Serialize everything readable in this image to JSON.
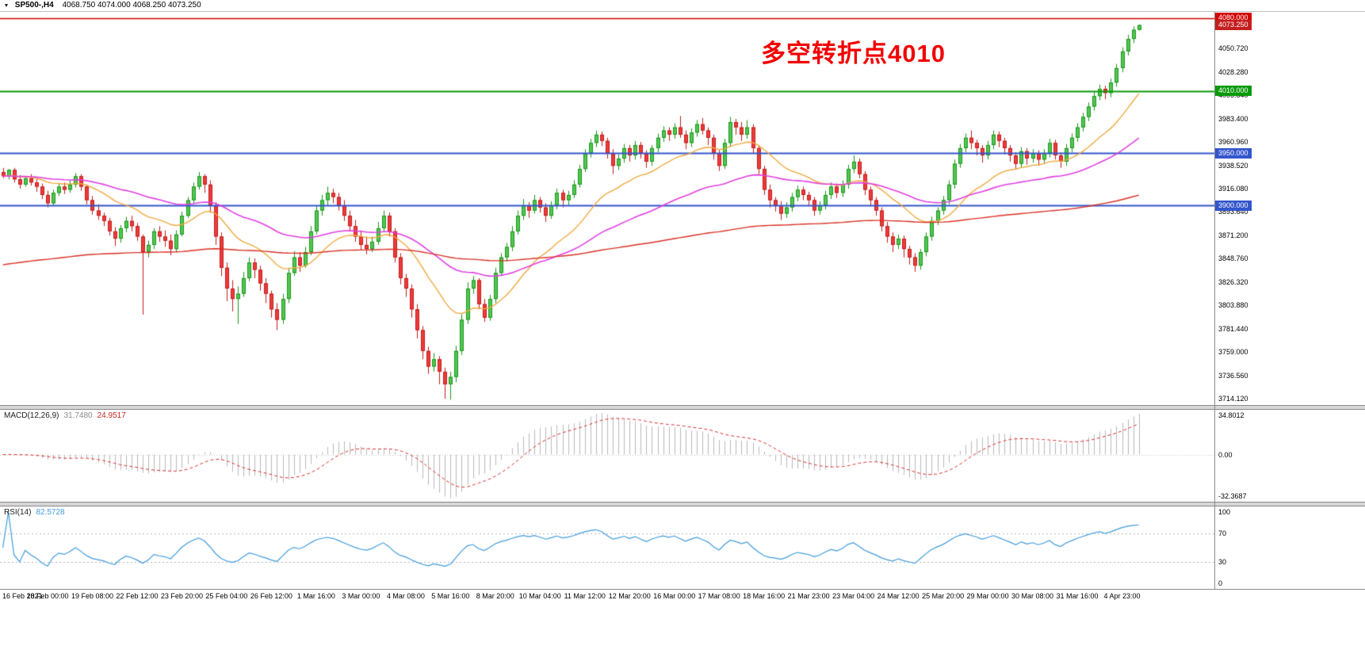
{
  "header": {
    "menu_icon": "▼",
    "symbol": "SP500-,H4",
    "ohlc": "4068.750 4074.000 4068.250 4073.250"
  },
  "annotation": {
    "text": "多空转折点4010",
    "color": "#f20000"
  },
  "price_axis": {
    "ticks": [
      4050.72,
      4028.28,
      4005.84,
      3983.4,
      3960.96,
      3938.52,
      3916.08,
      3893.64,
      3871.2,
      3848.76,
      3826.32,
      3803.88,
      3781.44,
      3759.0,
      3736.56,
      3714.12
    ],
    "badges": [
      {
        "label": "4080.000",
        "price": 4080.0,
        "bg": "#d40000"
      },
      {
        "label": "4073.250",
        "price": 4073.25,
        "bg": "#c41e1e"
      },
      {
        "label": "4010.000",
        "price": 4010.0,
        "bg": "#089b08"
      },
      {
        "label": "3950.000",
        "price": 3950.0,
        "bg": "#3355cc"
      },
      {
        "label": "3900.000",
        "price": 3900.0,
        "bg": "#3355cc"
      }
    ]
  },
  "macd_panel": {
    "label": "MACD(12,26,9)",
    "value_main": "31.7480",
    "value_signal": "24.9517",
    "axis": {
      "max": "34.8012",
      "zero": "0.00",
      "min": "-32.3687"
    }
  },
  "rsi_panel": {
    "label": "RSI(14)",
    "value": "82.5728",
    "axis": [
      100,
      70,
      30,
      0
    ],
    "levels": [
      70,
      30
    ]
  },
  "chart_data": {
    "type": "candlestick",
    "title": "SP500- H4",
    "price_range": [
      3708,
      4086
    ],
    "right_margin_bars": 13,
    "x_axis_labels": [
      "16 Feb 2021",
      "18 Feb 00:00",
      "19 Feb 08:00",
      "22 Feb 12:00",
      "23 Feb 20:00",
      "25 Feb 04:00",
      "26 Feb 12:00",
      "1 Mar 16:00",
      "3 Mar 00:00",
      "4 Mar 08:00",
      "5 Mar 16:00",
      "8 Mar 20:00",
      "10 Mar 04:00",
      "11 Mar 12:00",
      "12 Mar 20:00",
      "16 Mar 00:00",
      "17 Mar 08:00",
      "18 Mar 16:00",
      "21 Mar 23:00",
      "23 Mar 04:00",
      "24 Mar 12:00",
      "25 Mar 20:00",
      "29 Mar 00:00",
      "30 Mar 08:00",
      "31 Mar 16:00",
      "4 Apr 23:00"
    ],
    "label_bar_step": 8,
    "horizontal_lines": [
      {
        "price": 4080.0,
        "color": "#d40000",
        "width": 1.5
      },
      {
        "price": 4010.0,
        "color": "#089b08",
        "width": 2
      },
      {
        "price": 3950.0,
        "color": "#3355cc",
        "width": 2
      },
      {
        "price": 3900.0,
        "color": "#3355cc",
        "width": 2
      }
    ],
    "moving_averages": [
      {
        "name": "ma-fast",
        "method": "ema",
        "period": 20,
        "color": "#efa93e",
        "width": 1.4
      },
      {
        "name": "ma-mid",
        "method": "ema",
        "period": 55,
        "seed": 3928,
        "color": "#e040e0",
        "width": 1.6
      },
      {
        "name": "ma-slow",
        "method": "ema",
        "period": 220,
        "seed": 3842,
        "color": "#d93025",
        "width": 1.4
      }
    ],
    "indicators": {
      "macd": {
        "fast": 12,
        "slow": 26,
        "signal": 9
      },
      "rsi": {
        "period": 14
      }
    },
    "candle_colors": {
      "up_fill": "#53c653",
      "up_border": "#189618",
      "down_fill": "#ef3b3b",
      "down_border": "#c01d1d"
    },
    "candles": [
      [
        3932,
        3936,
        3926,
        3928
      ],
      [
        3928,
        3935,
        3925,
        3934
      ],
      [
        3934,
        3936,
        3922,
        3925
      ],
      [
        3925,
        3929,
        3916,
        3920
      ],
      [
        3920,
        3928,
        3918,
        3926
      ],
      [
        3926,
        3930,
        3919,
        3922
      ],
      [
        3922,
        3925,
        3913,
        3918
      ],
      [
        3918,
        3921,
        3906,
        3910
      ],
      [
        3910,
        3914,
        3898,
        3902
      ],
      [
        3902,
        3915,
        3900,
        3912
      ],
      [
        3912,
        3921,
        3909,
        3918
      ],
      [
        3918,
        3922,
        3911,
        3915
      ],
      [
        3915,
        3924,
        3912,
        3920
      ],
      [
        3920,
        3931,
        3917,
        3928
      ],
      [
        3928,
        3930,
        3914,
        3918
      ],
      [
        3918,
        3920,
        3901,
        3905
      ],
      [
        3905,
        3909,
        3891,
        3895
      ],
      [
        3895,
        3901,
        3886,
        3890
      ],
      [
        3890,
        3893,
        3880,
        3885
      ],
      [
        3885,
        3888,
        3871,
        3875
      ],
      [
        3875,
        3879,
        3861,
        3868
      ],
      [
        3868,
        3881,
        3864,
        3878
      ],
      [
        3878,
        3889,
        3874,
        3885
      ],
      [
        3885,
        3890,
        3875,
        3880
      ],
      [
        3880,
        3883,
        3866,
        3870
      ],
      [
        3870,
        3872,
        3795,
        3855
      ],
      [
        3855,
        3866,
        3850,
        3862
      ],
      [
        3862,
        3878,
        3858,
        3875
      ],
      [
        3875,
        3880,
        3865,
        3870
      ],
      [
        3870,
        3876,
        3860,
        3866
      ],
      [
        3866,
        3872,
        3852,
        3858
      ],
      [
        3858,
        3876,
        3855,
        3872
      ],
      [
        3872,
        3894,
        3870,
        3890
      ],
      [
        3890,
        3908,
        3888,
        3905
      ],
      [
        3905,
        3922,
        3902,
        3918
      ],
      [
        3918,
        3932,
        3915,
        3928
      ],
      [
        3928,
        3930,
        3912,
        3920
      ],
      [
        3920,
        3924,
        3893,
        3900
      ],
      [
        3900,
        3903,
        3862,
        3870
      ],
      [
        3870,
        3874,
        3832,
        3840
      ],
      [
        3840,
        3845,
        3808,
        3820
      ],
      [
        3820,
        3828,
        3798,
        3810
      ],
      [
        3810,
        3822,
        3786,
        3815
      ],
      [
        3815,
        3836,
        3812,
        3830
      ],
      [
        3830,
        3850,
        3827,
        3845
      ],
      [
        3845,
        3849,
        3830,
        3838
      ],
      [
        3838,
        3842,
        3818,
        3825
      ],
      [
        3825,
        3830,
        3806,
        3815
      ],
      [
        3815,
        3818,
        3792,
        3800
      ],
      [
        3800,
        3806,
        3780,
        3790
      ],
      [
        3790,
        3815,
        3786,
        3810
      ],
      [
        3810,
        3840,
        3806,
        3835
      ],
      [
        3835,
        3856,
        3832,
        3850
      ],
      [
        3850,
        3855,
        3836,
        3842
      ],
      [
        3842,
        3860,
        3840,
        3855
      ],
      [
        3855,
        3880,
        3852,
        3875
      ],
      [
        3875,
        3900,
        3872,
        3895
      ],
      [
        3895,
        3910,
        3890,
        3905
      ],
      [
        3905,
        3918,
        3900,
        3912
      ],
      [
        3912,
        3916,
        3902,
        3908
      ],
      [
        3908,
        3912,
        3895,
        3900
      ],
      [
        3900,
        3905,
        3885,
        3890
      ],
      [
        3890,
        3895,
        3875,
        3880
      ],
      [
        3880,
        3886,
        3865,
        3870
      ],
      [
        3870,
        3876,
        3857,
        3862
      ],
      [
        3862,
        3870,
        3853,
        3858
      ],
      [
        3858,
        3870,
        3855,
        3865
      ],
      [
        3865,
        3884,
        3862,
        3878
      ],
      [
        3878,
        3895,
        3874,
        3890
      ],
      [
        3890,
        3893,
        3870,
        3875
      ],
      [
        3875,
        3878,
        3845,
        3850
      ],
      [
        3850,
        3854,
        3824,
        3830
      ],
      [
        3830,
        3834,
        3812,
        3820
      ],
      [
        3820,
        3824,
        3792,
        3800
      ],
      [
        3800,
        3805,
        3772,
        3780
      ],
      [
        3780,
        3784,
        3752,
        3760
      ],
      [
        3760,
        3764,
        3738,
        3745
      ],
      [
        3745,
        3758,
        3740,
        3752
      ],
      [
        3752,
        3755,
        3728,
        3740
      ],
      [
        3740,
        3744,
        3714,
        3728
      ],
      [
        3728,
        3740,
        3713,
        3735
      ],
      [
        3735,
        3765,
        3730,
        3760
      ],
      [
        3760,
        3795,
        3756,
        3790
      ],
      [
        3790,
        3826,
        3786,
        3820
      ],
      [
        3820,
        3832,
        3815,
        3828
      ],
      [
        3828,
        3830,
        3800,
        3805
      ],
      [
        3805,
        3810,
        3788,
        3792
      ],
      [
        3792,
        3814,
        3789,
        3810
      ],
      [
        3810,
        3840,
        3806,
        3835
      ],
      [
        3835,
        3854,
        3832,
        3850
      ],
      [
        3850,
        3864,
        3846,
        3860
      ],
      [
        3860,
        3880,
        3856,
        3875
      ],
      [
        3875,
        3895,
        3872,
        3890
      ],
      [
        3890,
        3906,
        3886,
        3900
      ],
      [
        3900,
        3903,
        3888,
        3895
      ],
      [
        3895,
        3910,
        3892,
        3905
      ],
      [
        3905,
        3908,
        3893,
        3898
      ],
      [
        3898,
        3902,
        3884,
        3890
      ],
      [
        3890,
        3904,
        3887,
        3900
      ],
      [
        3900,
        3916,
        3896,
        3912
      ],
      [
        3912,
        3915,
        3898,
        3905
      ],
      [
        3905,
        3914,
        3900,
        3910
      ],
      [
        3910,
        3924,
        3907,
        3920
      ],
      [
        3920,
        3939,
        3917,
        3935
      ],
      [
        3935,
        3954,
        3932,
        3950
      ],
      [
        3950,
        3964,
        3946,
        3960
      ],
      [
        3960,
        3972,
        3956,
        3968
      ],
      [
        3968,
        3971,
        3957,
        3962
      ],
      [
        3962,
        3965,
        3945,
        3950
      ],
      [
        3950,
        3954,
        3930,
        3938
      ],
      [
        3938,
        3949,
        3934,
        3945
      ],
      [
        3945,
        3959,
        3941,
        3955
      ],
      [
        3955,
        3958,
        3942,
        3948
      ],
      [
        3948,
        3962,
        3944,
        3958
      ],
      [
        3958,
        3961,
        3945,
        3950
      ],
      [
        3950,
        3953,
        3936,
        3942
      ],
      [
        3942,
        3958,
        3938,
        3955
      ],
      [
        3955,
        3969,
        3951,
        3965
      ],
      [
        3965,
        3976,
        3961,
        3972
      ],
      [
        3972,
        3975,
        3962,
        3968
      ],
      [
        3968,
        3979,
        3964,
        3975
      ],
      [
        3975,
        3986,
        3965,
        3968
      ],
      [
        3968,
        3972,
        3954,
        3960
      ],
      [
        3960,
        3974,
        3956,
        3970
      ],
      [
        3970,
        3982,
        3966,
        3978
      ],
      [
        3978,
        3984,
        3968,
        3972
      ],
      [
        3972,
        3975,
        3958,
        3965
      ],
      [
        3965,
        3968,
        3944,
        3950
      ],
      [
        3950,
        3953,
        3933,
        3938
      ],
      [
        3938,
        3964,
        3935,
        3960
      ],
      [
        3960,
        3985,
        3956,
        3980
      ],
      [
        3980,
        3983,
        3968,
        3975
      ],
      [
        3975,
        3980,
        3962,
        3968
      ],
      [
        3968,
        3982,
        3964,
        3975
      ],
      [
        3975,
        3978,
        3950,
        3955
      ],
      [
        3955,
        3958,
        3930,
        3935
      ],
      [
        3935,
        3938,
        3910,
        3915
      ],
      [
        3915,
        3920,
        3898,
        3905
      ],
      [
        3905,
        3908,
        3894,
        3900
      ],
      [
        3900,
        3904,
        3886,
        3892
      ],
      [
        3892,
        3903,
        3888,
        3898
      ],
      [
        3898,
        3912,
        3894,
        3908
      ],
      [
        3908,
        3919,
        3904,
        3915
      ],
      [
        3915,
        3918,
        3905,
        3910
      ],
      [
        3910,
        3913,
        3899,
        3905
      ],
      [
        3905,
        3908,
        3890,
        3895
      ],
      [
        3895,
        3904,
        3891,
        3900
      ],
      [
        3900,
        3914,
        3896,
        3910
      ],
      [
        3910,
        3922,
        3906,
        3918
      ],
      [
        3918,
        3921,
        3907,
        3912
      ],
      [
        3912,
        3924,
        3908,
        3920
      ],
      [
        3920,
        3939,
        3916,
        3935
      ],
      [
        3935,
        3948,
        3931,
        3942
      ],
      [
        3942,
        3945,
        3926,
        3930
      ],
      [
        3930,
        3933,
        3910,
        3915
      ],
      [
        3915,
        3918,
        3899,
        3905
      ],
      [
        3905,
        3908,
        3890,
        3895
      ],
      [
        3895,
        3898,
        3875,
        3880
      ],
      [
        3880,
        3884,
        3864,
        3870
      ],
      [
        3870,
        3874,
        3855,
        3862
      ],
      [
        3862,
        3872,
        3858,
        3868
      ],
      [
        3868,
        3871,
        3850,
        3858
      ],
      [
        3858,
        3861,
        3843,
        3850
      ],
      [
        3850,
        3854,
        3836,
        3842
      ],
      [
        3842,
        3858,
        3838,
        3855
      ],
      [
        3855,
        3874,
        3851,
        3870
      ],
      [
        3870,
        3889,
        3866,
        3885
      ],
      [
        3885,
        3898,
        3881,
        3895
      ],
      [
        3895,
        3909,
        3891,
        3905
      ],
      [
        3905,
        3924,
        3901,
        3920
      ],
      [
        3920,
        3944,
        3916,
        3940
      ],
      [
        3940,
        3959,
        3936,
        3955
      ],
      [
        3955,
        3969,
        3951,
        3965
      ],
      [
        3965,
        3972,
        3954,
        3960
      ],
      [
        3960,
        3963,
        3948,
        3955
      ],
      [
        3955,
        3958,
        3941,
        3948
      ],
      [
        3948,
        3962,
        3944,
        3958
      ],
      [
        3958,
        3972,
        3954,
        3968
      ],
      [
        3968,
        3971,
        3956,
        3962
      ],
      [
        3962,
        3965,
        3949,
        3955
      ],
      [
        3955,
        3958,
        3942,
        3948
      ],
      [
        3948,
        3951,
        3935,
        3940
      ],
      [
        3940,
        3956,
        3936,
        3952
      ],
      [
        3952,
        3955,
        3939,
        3945
      ],
      [
        3945,
        3954,
        3941,
        3950
      ],
      [
        3950,
        3953,
        3938,
        3944
      ],
      [
        3944,
        3954,
        3940,
        3950
      ],
      [
        3950,
        3964,
        3946,
        3960
      ],
      [
        3960,
        3963,
        3944,
        3948
      ],
      [
        3948,
        3951,
        3936,
        3942
      ],
      [
        3942,
        3959,
        3938,
        3955
      ],
      [
        3955,
        3969,
        3951,
        3965
      ],
      [
        3965,
        3979,
        3961,
        3975
      ],
      [
        3975,
        3989,
        3971,
        3985
      ],
      [
        3985,
        3999,
        3981,
        3995
      ],
      [
        3995,
        4009,
        3991,
        4005
      ],
      [
        4005,
        4016,
        4001,
        4012
      ],
      [
        4012,
        4015,
        4002,
        4008
      ],
      [
        4008,
        4022,
        4004,
        4018
      ],
      [
        4018,
        4036,
        4014,
        4032
      ],
      [
        4032,
        4052,
        4028,
        4048
      ],
      [
        4048,
        4064,
        4044,
        4060
      ],
      [
        4060,
        4072,
        4056,
        4068.75
      ],
      [
        4068.75,
        4074,
        4068.25,
        4073.25
      ]
    ]
  }
}
